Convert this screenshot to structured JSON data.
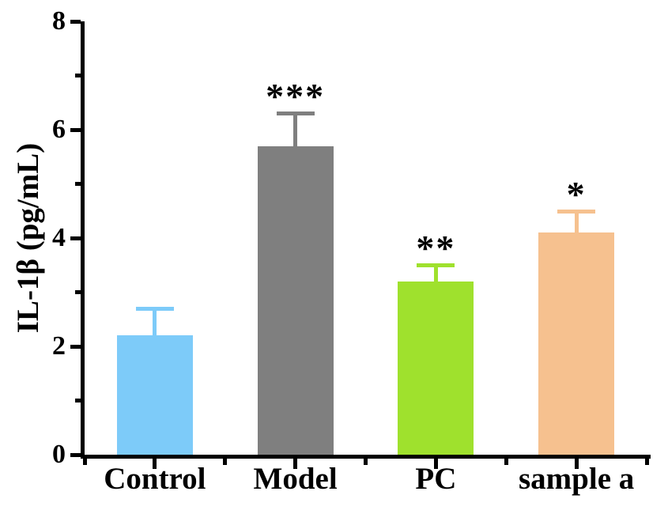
{
  "chart_data": {
    "type": "bar",
    "title": "",
    "ylabel": "IL-1β (pg/mL)",
    "xlabel": "",
    "ylim": [
      0,
      8
    ],
    "yticks_major": [
      0,
      2,
      4,
      6,
      8
    ],
    "yticks_minor": [
      1,
      3,
      5,
      7
    ],
    "categories": [
      "Control",
      "Model",
      "PC",
      "sample a"
    ],
    "values": [
      2.2,
      5.7,
      3.2,
      4.1
    ],
    "errors": [
      0.5,
      0.6,
      0.3,
      0.4
    ],
    "significance": [
      "",
      "***",
      "**",
      "*"
    ],
    "bar_colors": [
      "#7DCBF9",
      "#7F7F7F",
      "#9FE12D",
      "#F6C18F"
    ],
    "error_bar_colors": [
      "#7DCBF9",
      "#7F7F7F",
      "#9FE12D",
      "#F6C18F"
    ],
    "axis_color": "#000000",
    "grid": false,
    "legend": null
  }
}
